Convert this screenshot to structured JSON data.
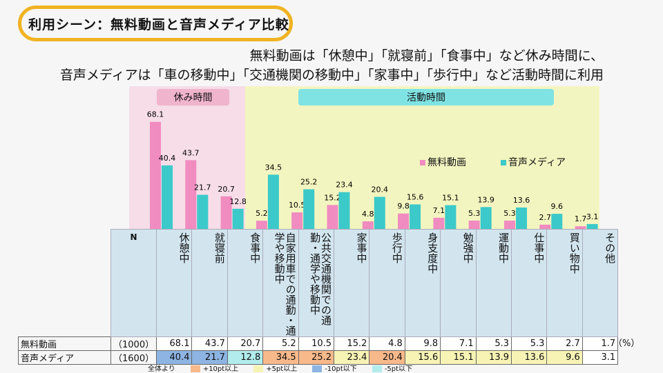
{
  "title": "利用シーン：無料動画と音声メディア比較",
  "subtitle1": "無料動画は「休憩中」「就寝前」「食事中」など休み時間に、",
  "subtitle2": "音声メディアは「車の移動中」「交通機関の移動中」「家事中」「歩行中」など活動時間に利用",
  "groups": {
    "rest": "休み時間",
    "active": "活動時間"
  },
  "colors": {
    "free_video": "#f08cc0",
    "audio": "#3cc9c9",
    "rest_bg": "#f6dde8",
    "active_bg": "#f3f5c0",
    "orange": "#f7b88a",
    "yellow": "#f7f3b5",
    "blue": "#8db4e2",
    "cyan": "#b2ecec"
  },
  "chart_data": {
    "type": "bar",
    "categories": [
      "休憩中",
      "就寝前",
      "食事中",
      "自家用車での通勤・通学や移動中",
      "公共交通機関での通勤・通学や移動中",
      "家事中",
      "歩行中",
      "身支度中",
      "勉強中",
      "運動中",
      "仕事中",
      "買い物中",
      "その他"
    ],
    "series": [
      {
        "name": "無料動画",
        "n": "（1000）",
        "values": [
          68.1,
          43.7,
          20.7,
          5.2,
          10.5,
          15.2,
          4.8,
          9.8,
          7.1,
          5.3,
          5.3,
          2.7,
          1.7
        ]
      },
      {
        "name": "音声メディア",
        "n": "（1600）",
        "values": [
          40.4,
          21.7,
          12.8,
          34.5,
          25.2,
          23.4,
          20.4,
          15.6,
          15.1,
          13.9,
          13.6,
          9.6,
          3.1
        ],
        "highlight": [
          "blue",
          "blue",
          "cyan",
          "orange",
          "orange",
          "yellow",
          "orange",
          "yellow",
          "yellow",
          "yellow",
          "yellow",
          "yellow",
          "none"
        ]
      }
    ],
    "unit": "（%）",
    "n_header": "N",
    "legend_placement": "right"
  },
  "footer_legend": {
    "label": "全体より",
    "items": [
      {
        "label": "+10pt以上",
        "color": "orange"
      },
      {
        "label": "+5pt以上",
        "color": "yellow"
      },
      {
        "label": "-10pt以下",
        "color": "blue"
      },
      {
        "label": "-5pt以下",
        "color": "cyan"
      }
    ]
  }
}
